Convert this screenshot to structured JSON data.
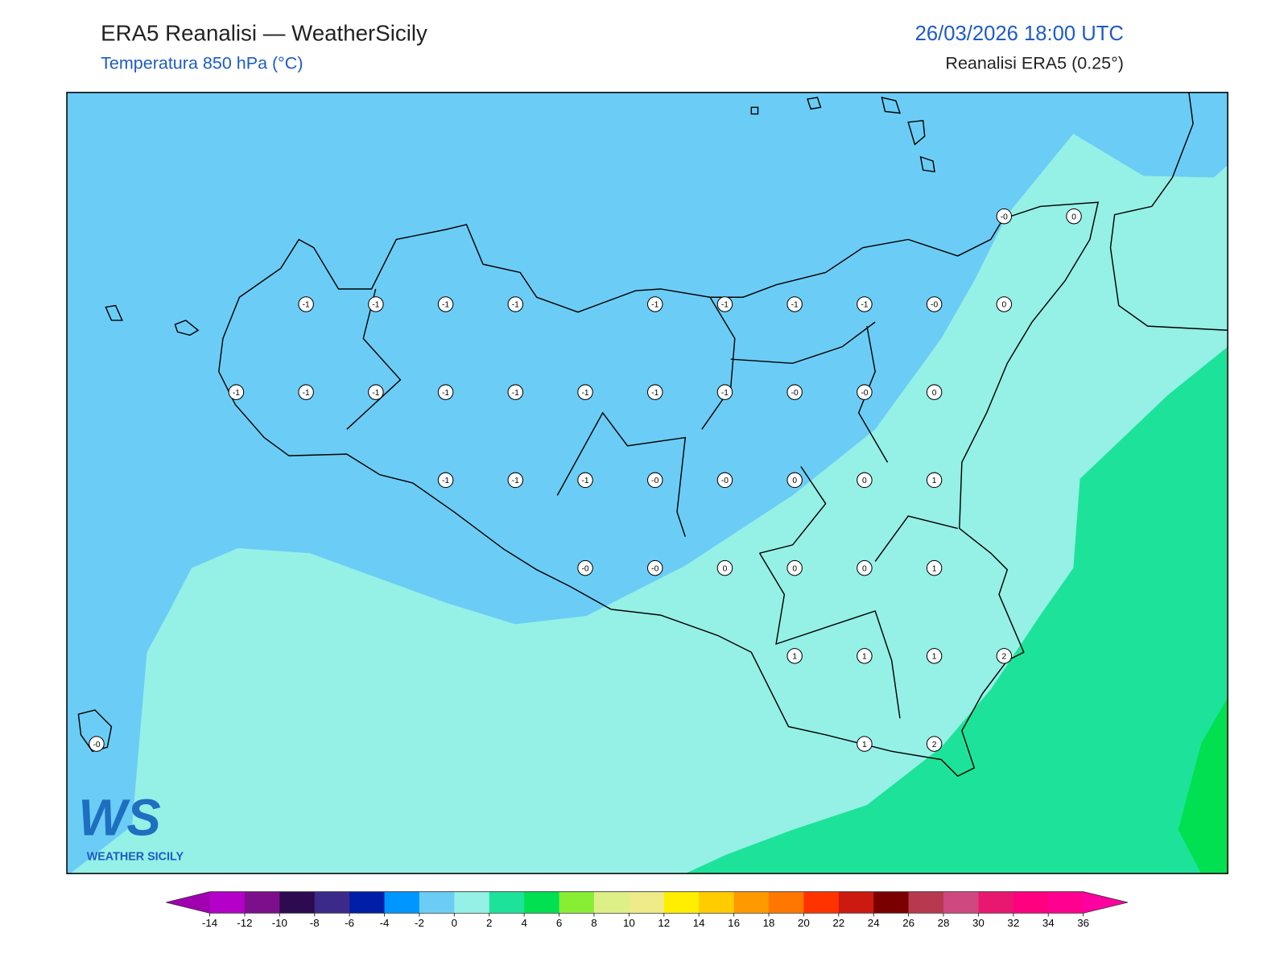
{
  "header": {
    "title": "ERA5 Reanalisi — WeatherSicily",
    "subtitle": "Temperatura 850 hPa (°C)",
    "datetime": "26/03/2026 18:00 UTC",
    "source": "Reanalisi ERA5 (0.25°)"
  },
  "stations": {
    "rows": [
      [
        null,
        null,
        null,
        null,
        null,
        null,
        null,
        null,
        null,
        null,
        null,
        null,
        null,
        "-0",
        "0"
      ],
      [
        null,
        null,
        null,
        "-1",
        "-1",
        "-1",
        "-1",
        null,
        "-1",
        "-1",
        "-1",
        "-1",
        "-0",
        "0",
        null
      ],
      [
        null,
        null,
        "-1",
        "-1",
        "-1",
        "-1",
        "-1",
        "-1",
        "-1",
        "-1",
        "-0",
        "-0",
        "0",
        null,
        null
      ],
      [
        null,
        null,
        null,
        null,
        null,
        "-1",
        "-1",
        "-1",
        "-0",
        "-0",
        "0",
        "0",
        "1",
        null,
        null
      ],
      [
        null,
        null,
        null,
        null,
        null,
        null,
        null,
        "-0",
        "-0",
        "0",
        "0",
        "0",
        "1",
        null,
        null
      ],
      [
        null,
        null,
        null,
        null,
        null,
        null,
        null,
        null,
        null,
        null,
        "1",
        "1",
        "1",
        "2",
        null
      ],
      [
        "-0",
        null,
        null,
        null,
        null,
        null,
        null,
        null,
        null,
        null,
        null,
        "1",
        "2",
        null,
        null
      ]
    ]
  },
  "colorbar": {
    "ticks": [
      -14,
      -12,
      -10,
      -8,
      -6,
      -4,
      -2,
      0,
      2,
      4,
      6,
      8,
      10,
      12,
      14,
      16,
      18,
      20,
      22,
      24,
      26,
      28,
      30,
      32,
      34,
      36
    ],
    "colors": [
      "#b400c8",
      "#7d0f8c",
      "#2e0a50",
      "#3c2a8a",
      "#001ea8",
      "#0096ff",
      "#6bcdf5",
      "#95f0e6",
      "#1de39a",
      "#00e050",
      "#88ee33",
      "#ddf088",
      "#eeeb88",
      "#ffee00",
      "#ffcc00",
      "#ff9900",
      "#ff7700",
      "#ff3300",
      "#cc1a10",
      "#7a0000",
      "#b83850",
      "#d04880",
      "#e81870",
      "#ff0080",
      "#ff0090"
    ],
    "under": "#a000b0",
    "over": "#ff00a0"
  },
  "logo": {
    "mark": "WS",
    "name": "WEATHER SICILY"
  }
}
